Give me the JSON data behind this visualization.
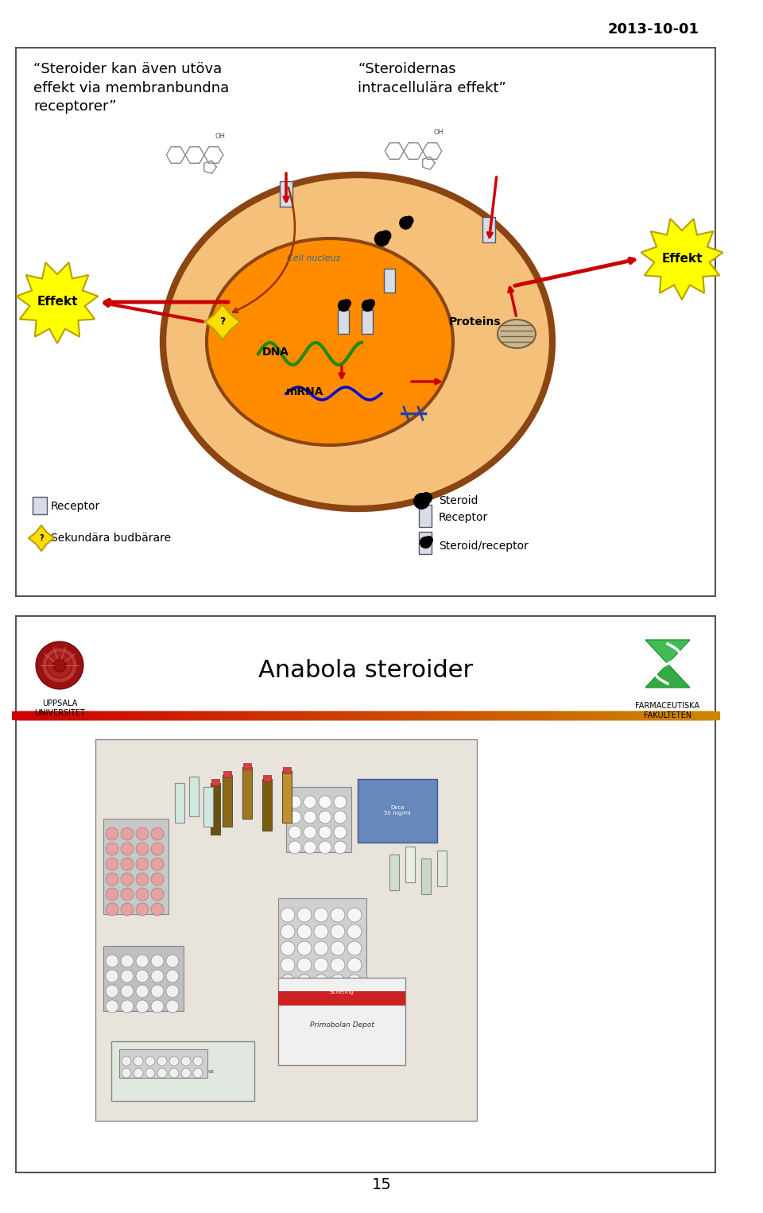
{
  "date_text": "2013-10-01",
  "page_number": "15",
  "slide1_title_left": "“Steroider kan även utöva\neffekt via membranbundna\nreceptorer”",
  "slide1_title_right": "“Steroidernas\nintracellulära effekt”",
  "effekt_label": "Effekt",
  "cell_nucleus_label": "Cell nucleus",
  "dna_label": "DNA",
  "mrna_label": "mRNA",
  "proteins_label": "Proteins",
  "receptor_legend": "Receptor",
  "secondary_legend": "Sekundära budbärare",
  "steroid_legend": "Steroid",
  "receptor_legend2": "Receptor",
  "steroid_receptor_legend": "Steroid/receptor",
  "slide2_title": "Anabola steroider",
  "cell_outer_color": "#8B4513",
  "cell_inner_color": "#FF8C00",
  "cell_cytoplasm_color": "#F5C07A",
  "effekt_star_color": "#FFFF00",
  "effekt_edge_color": "#B8A000",
  "arrow_color": "#CC0000",
  "bg_color": "#FFFFFF",
  "box_border": "#555555",
  "slide2_red_bar_color": "#CC0000",
  "slide2_bar_gradient": "#CC8800",
  "dna_color": "#228800",
  "mrna_color": "#0000CC",
  "receptor_fill": "#D8DCE8",
  "receptor_edge": "#555566",
  "nucleus_label_color": "#336699",
  "photo_bg": "#D8CEBC"
}
